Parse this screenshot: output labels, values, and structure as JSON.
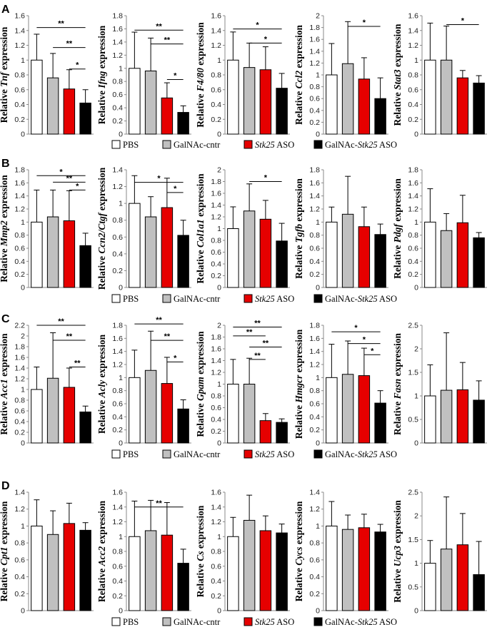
{
  "colors": {
    "PBS": "#ffffff",
    "GalNAc-cntr": "#c0c0c0",
    "Stk25 ASO": "#e60000",
    "GalNAc-Stk25 ASO": "#000000",
    "axis": "#888888"
  },
  "legend": [
    {
      "label": "PBS",
      "italic": "",
      "suffix": "",
      "color": "#ffffff"
    },
    {
      "label": "GalNAc-cntr",
      "italic": "",
      "suffix": "",
      "color": "#c0c0c0"
    },
    {
      "label": "",
      "italic": "Stk25",
      "suffix": " ASO",
      "color": "#e60000"
    },
    {
      "label": "GalNAc-",
      "italic": "Stk25",
      "suffix": " ASO",
      "color": "#000000"
    }
  ],
  "chart_data": [
    {
      "panel": "A",
      "type": "bar",
      "gene": "Tnf",
      "label_prefix": "Relative ",
      "label_suffix": " expression",
      "ylim": [
        0,
        1.6
      ],
      "yticks": [
        "0",
        "0.2",
        "0.4",
        "0.6",
        "0.8",
        "1",
        "1.2",
        "1.4",
        "1.6"
      ],
      "categories": [
        "PBS",
        "GalNAc-cntr",
        "Stk25 ASO",
        "GalNAc-Stk25 ASO"
      ],
      "values": [
        1.0,
        0.76,
        0.61,
        0.42
      ],
      "errors": [
        0.35,
        0.33,
        0.26,
        0.18
      ],
      "sig": [
        {
          "from": 0,
          "to": 3,
          "y": 1.44,
          "label": "**"
        },
        {
          "from": 1,
          "to": 3,
          "y": 1.17,
          "label": "**"
        },
        {
          "from": 2,
          "to": 3,
          "y": 0.88,
          "label": "*"
        }
      ]
    },
    {
      "panel": "A",
      "type": "bar",
      "gene": "Ifng",
      "label_prefix": "Relative ",
      "label_suffix": " expression",
      "ylim": [
        0,
        1.8
      ],
      "yticks": [
        "0",
        "0.2",
        "0.4",
        "0.6",
        "0.8",
        "1",
        "1.2",
        "1.4",
        "1.6",
        "1.8"
      ],
      "categories": [
        "PBS",
        "GalNAc-cntr",
        "Stk25 ASO",
        "GalNAc-Stk25 ASO"
      ],
      "values": [
        1.0,
        0.96,
        0.55,
        0.33
      ],
      "errors": [
        0.55,
        0.5,
        0.23,
        0.1
      ],
      "sig": [
        {
          "from": 0,
          "to": 3,
          "y": 1.58,
          "label": "**"
        },
        {
          "from": 1,
          "to": 3,
          "y": 1.37,
          "label": "**"
        },
        {
          "from": 2,
          "to": 3,
          "y": 0.83,
          "label": "*"
        }
      ]
    },
    {
      "panel": "A",
      "type": "bar",
      "gene": "F4/80",
      "label_prefix": "Relative ",
      "label_suffix": " expression",
      "ylim": [
        0,
        1.6
      ],
      "yticks": [
        "0",
        "0.2",
        "0.4",
        "0.6",
        "0.8",
        "1",
        "1.2",
        "1.4",
        "1.6"
      ],
      "categories": [
        "PBS",
        "GalNAc-cntr",
        "Stk25 ASO",
        "GalNAc-Stk25 ASO"
      ],
      "values": [
        1.0,
        0.9,
        0.87,
        0.62
      ],
      "errors": [
        0.38,
        0.33,
        0.31,
        0.2
      ],
      "sig": [
        {
          "from": 0,
          "to": 3,
          "y": 1.42,
          "label": "*"
        },
        {
          "from": 1,
          "to": 3,
          "y": 1.23,
          "label": "*"
        }
      ]
    },
    {
      "panel": "A",
      "type": "bar",
      "gene": "Ccl2",
      "label_prefix": "Relative ",
      "label_suffix": " expression",
      "ylim": [
        0,
        2
      ],
      "yticks": [
        "0",
        "0.2",
        "0.4",
        "0.6",
        "0.8",
        "1",
        "1.2",
        "1.4",
        "1.6",
        "1.8",
        "2"
      ],
      "categories": [
        "PBS",
        "GalNAc-cntr",
        "Stk25 ASO",
        "GalNAc-Stk25 ASO"
      ],
      "values": [
        1.0,
        1.19,
        0.93,
        0.6
      ],
      "errors": [
        0.53,
        0.71,
        0.36,
        0.35
      ],
      "sig": [
        {
          "from": 1,
          "to": 3,
          "y": 1.82,
          "label": "*"
        }
      ]
    },
    {
      "panel": "A",
      "type": "bar",
      "gene": "Stat3",
      "label_prefix": "Relative ",
      "label_suffix": " expression",
      "ylim": [
        0,
        1.6
      ],
      "yticks": [
        "0",
        "0.2",
        "0.4",
        "0.6",
        "0.8",
        "1",
        "1.2",
        "1.4",
        "1.6"
      ],
      "categories": [
        "PBS",
        "GalNAc-cntr",
        "Stk25 ASO",
        "GalNAc-Stk25 ASO"
      ],
      "values": [
        1.0,
        1.0,
        0.76,
        0.69
      ],
      "errors": [
        0.5,
        0.46,
        0.1,
        0.1
      ],
      "sig": [
        {
          "from": 1,
          "to": 3,
          "y": 1.48,
          "label": "*"
        }
      ]
    },
    {
      "panel": "B",
      "type": "bar",
      "gene": "Mmp2",
      "label_prefix": "Relative ",
      "label_suffix": " expression",
      "ylim": [
        0,
        1.8
      ],
      "yticks": [
        "0",
        "0.2",
        "0.4",
        "0.6",
        "0.8",
        "1",
        "1.2",
        "1.4",
        "1.6",
        "1.8"
      ],
      "categories": [
        "PBS",
        "GalNAc-cntr",
        "Stk25 ASO",
        "GalNAc-Stk25 ASO"
      ],
      "values": [
        1.0,
        1.08,
        1.02,
        0.64
      ],
      "errors": [
        0.49,
        0.41,
        0.46,
        0.19
      ],
      "sig": [
        {
          "from": 0,
          "to": 3,
          "y": 1.71,
          "label": "*"
        },
        {
          "from": 1,
          "to": 3,
          "y": 1.61,
          "label": "**"
        },
        {
          "from": 2,
          "to": 3,
          "y": 1.49,
          "label": "*"
        }
      ]
    },
    {
      "panel": "B",
      "type": "bar",
      "gene": "Ccn2/Ctgf",
      "label_prefix": "Relative ",
      "label_suffix": " expression",
      "ylim": [
        0,
        1.4
      ],
      "yticks": [
        "0",
        "0.2",
        "0.4",
        "0.6",
        "0.8",
        "1",
        "1.2",
        "1.4"
      ],
      "categories": [
        "PBS",
        "GalNAc-cntr",
        "Stk25 ASO",
        "GalNAc-Stk25 ASO"
      ],
      "values": [
        1.0,
        0.84,
        0.95,
        0.62
      ],
      "errors": [
        0.33,
        0.24,
        0.35,
        0.18
      ],
      "sig": [
        {
          "from": 0,
          "to": 3,
          "y": 1.25,
          "label": "*"
        },
        {
          "from": 2,
          "to": 3,
          "y": 1.13,
          "label": "*"
        }
      ]
    },
    {
      "panel": "B",
      "type": "bar",
      "gene": "Col1a1",
      "label_prefix": "Relative ",
      "label_suffix": " expression",
      "ylim": [
        0,
        2
      ],
      "yticks": [
        "0",
        "0.2",
        "0.4",
        "0.6",
        "0.8",
        "1",
        "1.2",
        "1.4",
        "1.6",
        "1.8",
        "2"
      ],
      "categories": [
        "PBS",
        "GalNAc-cntr",
        "Stk25 ASO",
        "GalNAc-Stk25 ASO"
      ],
      "values": [
        1.0,
        1.3,
        1.16,
        0.79
      ],
      "errors": [
        0.37,
        0.46,
        0.32,
        0.3
      ],
      "sig": [
        {
          "from": 1,
          "to": 3,
          "y": 1.8,
          "label": "*"
        }
      ]
    },
    {
      "panel": "B",
      "type": "bar",
      "gene": "Tgfb",
      "label_prefix": "Relative ",
      "label_suffix": " expression",
      "ylim": [
        0,
        1.8
      ],
      "yticks": [
        "0",
        "0.2",
        "0.4",
        "0.6",
        "0.8",
        "1",
        "1.2",
        "1.4",
        "1.6",
        "1.8"
      ],
      "categories": [
        "PBS",
        "GalNAc-cntr",
        "Stk25 ASO",
        "GalNAc-Stk25 ASO"
      ],
      "values": [
        1.0,
        1.12,
        0.93,
        0.81
      ],
      "errors": [
        0.23,
        0.58,
        0.3,
        0.16
      ],
      "sig": []
    },
    {
      "panel": "B",
      "type": "bar",
      "gene": "Pdgf",
      "label_prefix": "Relative ",
      "label_suffix": " expression",
      "ylim": [
        0,
        1.8
      ],
      "yticks": [
        "0",
        "0.2",
        "0.4",
        "0.6",
        "0.8",
        "1",
        "1.2",
        "1.4",
        "1.6",
        "1.8"
      ],
      "categories": [
        "PBS",
        "GalNAc-cntr",
        "Stk25 ASO",
        "GalNAc-Stk25 ASO"
      ],
      "values": [
        1.0,
        0.87,
        0.99,
        0.76
      ],
      "errors": [
        0.51,
        0.26,
        0.42,
        0.08
      ],
      "sig": []
    },
    {
      "panel": "C",
      "type": "bar",
      "gene": "Acc1",
      "label_prefix": "Relative ",
      "label_suffix": " expression",
      "ylim": [
        0,
        2.2
      ],
      "yticks": [
        "0",
        "0.2",
        "0.4",
        "0.6",
        "0.8",
        "1",
        "1.2",
        "1.4",
        "1.6",
        "1.8",
        "2",
        "2.2"
      ],
      "categories": [
        "PBS",
        "GalNAc-cntr",
        "Stk25 ASO",
        "GalNAc-Stk25 ASO"
      ],
      "values": [
        1.0,
        1.21,
        1.04,
        0.58
      ],
      "errors": [
        0.42,
        0.85,
        0.36,
        0.11
      ],
      "sig": [
        {
          "from": 0,
          "to": 3,
          "y": 2.2,
          "label": "**"
        },
        {
          "from": 1,
          "to": 3,
          "y": 1.92,
          "label": "**"
        },
        {
          "from": 2,
          "to": 3,
          "y": 1.42,
          "label": "**"
        }
      ]
    },
    {
      "panel": "C",
      "type": "bar",
      "gene": "Acly",
      "label_prefix": "Relative ",
      "label_suffix": " expression",
      "ylim": [
        0,
        1.8
      ],
      "yticks": [
        "0",
        "0.2",
        "0.4",
        "0.6",
        "0.8",
        "1",
        "1.2",
        "1.4",
        "1.6",
        "1.8"
      ],
      "categories": [
        "PBS",
        "GalNAc-cntr",
        "Stk25 ASO",
        "GalNAc-Stk25 ASO"
      ],
      "values": [
        1.0,
        1.11,
        0.91,
        0.52
      ],
      "errors": [
        0.42,
        0.6,
        0.4,
        0.14
      ],
      "sig": [
        {
          "from": 0,
          "to": 3,
          "y": 1.82,
          "label": "**"
        },
        {
          "from": 1,
          "to": 3,
          "y": 1.57,
          "label": "**"
        },
        {
          "from": 2,
          "to": 3,
          "y": 1.24,
          "label": "*"
        }
      ]
    },
    {
      "panel": "C",
      "type": "bar",
      "gene": "Gpam",
      "label_prefix": "Relative ",
      "label_suffix": " expression",
      "ylim": [
        0,
        2
      ],
      "yticks": [
        "0",
        "0.2",
        "0.4",
        "0.6",
        "0.8",
        "1",
        "1.2",
        "1.4",
        "1.6",
        "1.8",
        "2"
      ],
      "categories": [
        "PBS",
        "GalNAc-cntr",
        "Stk25 ASO",
        "GalNAc-Stk25 ASO"
      ],
      "values": [
        1.0,
        1.0,
        0.38,
        0.35
      ],
      "errors": [
        0.42,
        0.44,
        0.12,
        0.06
      ],
      "sig": [
        {
          "from": 0,
          "to": 3,
          "y": 1.97,
          "label": "**"
        },
        {
          "from": 0,
          "to": 2,
          "y": 1.82,
          "label": "**"
        },
        {
          "from": 1,
          "to": 3,
          "y": 1.63,
          "label": "**"
        },
        {
          "from": 1,
          "to": 2,
          "y": 1.42,
          "label": "**"
        }
      ]
    },
    {
      "panel": "C",
      "type": "bar",
      "gene": "Hmgcr",
      "label_prefix": "Relative ",
      "label_suffix": " expression",
      "ylim": [
        0,
        1.8
      ],
      "yticks": [
        "0",
        "0.2",
        "0.4",
        "0.6",
        "0.8",
        "1",
        "1.2",
        "1.4",
        "1.6",
        "1.8"
      ],
      "categories": [
        "PBS",
        "GalNAc-cntr",
        "Stk25 ASO",
        "GalNAc-Stk25 ASO"
      ],
      "values": [
        1.0,
        1.05,
        1.03,
        0.61
      ],
      "errors": [
        0.51,
        0.51,
        0.42,
        0.19
      ],
      "sig": [
        {
          "from": 0,
          "to": 3,
          "y": 1.7,
          "label": "*"
        },
        {
          "from": 1,
          "to": 3,
          "y": 1.52,
          "label": "*"
        },
        {
          "from": 2,
          "to": 3,
          "y": 1.35,
          "label": "*"
        }
      ]
    },
    {
      "panel": "C",
      "type": "bar",
      "gene": "Fasn",
      "label_prefix": "Relative ",
      "label_suffix": " expression",
      "ylim": [
        0,
        2.5
      ],
      "yticks": [
        "0",
        "0.5",
        "1",
        "1.5",
        "2",
        "2.5"
      ],
      "categories": [
        "PBS",
        "GalNAc-cntr",
        "Stk25 ASO",
        "GalNAc-Stk25 ASO"
      ],
      "values": [
        1.0,
        1.12,
        1.13,
        0.91
      ],
      "errors": [
        0.66,
        1.22,
        0.58,
        0.41
      ],
      "sig": []
    },
    {
      "panel": "D",
      "type": "bar",
      "gene": "Cpt1",
      "label_prefix": "Relative ",
      "label_suffix": " expression",
      "ylim": [
        0,
        1.4
      ],
      "yticks": [
        "0",
        "0.2",
        "0.4",
        "0.6",
        "0.8",
        "1",
        "1.2",
        "1.4"
      ],
      "categories": [
        "PBS",
        "GalNAc-cntr",
        "Stk25 ASO",
        "GalNAc-Stk25 ASO"
      ],
      "values": [
        1.0,
        0.9,
        1.03,
        0.95
      ],
      "errors": [
        0.31,
        0.28,
        0.24,
        0.09
      ],
      "sig": []
    },
    {
      "panel": "D",
      "type": "bar",
      "gene": "Acc2",
      "label_prefix": "Relative ",
      "label_suffix": " expression",
      "ylim": [
        0,
        1.6
      ],
      "yticks": [
        "0",
        "0.2",
        "0.4",
        "0.6",
        "0.8",
        "1",
        "1.2",
        "1.4",
        "1.6"
      ],
      "categories": [
        "PBS",
        "GalNAc-cntr",
        "Stk25 ASO",
        "GalNAc-Stk25 ASO"
      ],
      "values": [
        1.0,
        1.08,
        1.02,
        0.64
      ],
      "errors": [
        0.48,
        0.41,
        0.44,
        0.19
      ],
      "sig": [
        {
          "from": 0,
          "to": 3,
          "y": 1.4,
          "label": "**"
        }
      ]
    },
    {
      "panel": "D",
      "type": "bar",
      "gene": "Cs",
      "label_prefix": "Relative ",
      "label_suffix": " expression",
      "ylim": [
        0,
        1.6
      ],
      "yticks": [
        "0",
        "0.2",
        "0.4",
        "0.6",
        "0.8",
        "1",
        "1.2",
        "1.4",
        "1.6"
      ],
      "categories": [
        "PBS",
        "GalNAc-cntr",
        "Stk25 ASO",
        "GalNAc-Stk25 ASO"
      ],
      "values": [
        1.0,
        1.22,
        1.08,
        1.05
      ],
      "errors": [
        0.26,
        0.34,
        0.2,
        0.12
      ],
      "sig": []
    },
    {
      "panel": "D",
      "type": "bar",
      "gene": "Cycs",
      "label_prefix": "Relative ",
      "label_suffix": " expression",
      "ylim": [
        0,
        1.4
      ],
      "yticks": [
        "0",
        "0.2",
        "0.4",
        "0.6",
        "0.8",
        "1",
        "1.2",
        "1.4"
      ],
      "categories": [
        "PBS",
        "GalNAc-cntr",
        "Stk25 ASO",
        "GalNAc-Stk25 ASO"
      ],
      "values": [
        1.0,
        0.96,
        0.98,
        0.93
      ],
      "errors": [
        0.29,
        0.17,
        0.16,
        0.09
      ],
      "sig": []
    },
    {
      "panel": "D",
      "type": "bar",
      "gene": "Ucp3",
      "label_prefix": "Relative ",
      "label_suffix": " expression",
      "ylim": [
        0,
        2.5
      ],
      "yticks": [
        "0",
        "0.5",
        "1",
        "1.5",
        "2",
        "2.5"
      ],
      "categories": [
        "PBS",
        "GalNAc-cntr",
        "Stk25 ASO",
        "GalNAc-Stk25 ASO"
      ],
      "values": [
        1.0,
        1.3,
        1.39,
        0.76
      ],
      "errors": [
        0.48,
        1.1,
        0.66,
        0.7
      ],
      "sig": []
    }
  ]
}
